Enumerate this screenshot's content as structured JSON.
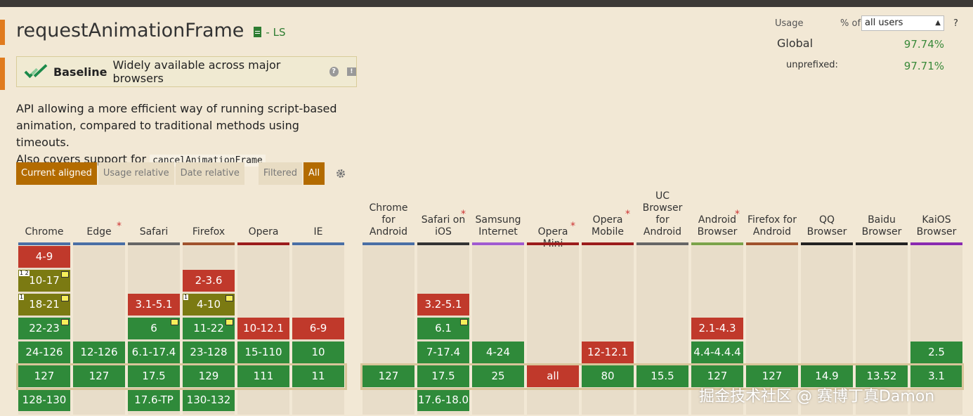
{
  "title": "requestAnimationFrame",
  "spec_label": "- LS",
  "baseline": {
    "label": "Baseline",
    "description": "Widely available across major browsers"
  },
  "description_lines": [
    "API allowing a more efficient way of running script-based",
    "animation, compared to traditional methods using timeouts.",
    "Also covers support for"
  ],
  "description_code": "cancelAnimationFrame",
  "view_buttons": [
    "Current aligned",
    "Usage relative",
    "Date relative"
  ],
  "filter_buttons": [
    "Filtered",
    "All"
  ],
  "usage": {
    "label": "Usage",
    "pct_of": "% of",
    "selected": "all users",
    "help": "?",
    "global_label": "Global",
    "global_value": "97.74%",
    "unprefixed_label": "unprefixed:",
    "unprefixed_value": "97.71%"
  },
  "colors": {
    "supported": "#2f8a3a",
    "unsupported": "#c0392b",
    "partial": "#7b7a12",
    "accent": "#b36b00"
  },
  "browsers": [
    {
      "name": "Chrome",
      "line": "#4a6fa5",
      "cells": [
        {
          "v": "4-9",
          "s": "r",
          "row": 0
        },
        {
          "v": "10-17",
          "s": "p",
          "row": 1,
          "note": "1 2",
          "flag": true
        },
        {
          "v": "18-21",
          "s": "p",
          "row": 2,
          "note": "1",
          "flag": true
        },
        {
          "v": "22-23",
          "s": "g",
          "row": 3,
          "flag": true
        },
        {
          "v": "24-126",
          "s": "g",
          "row": 4
        },
        {
          "v": "127",
          "s": "g",
          "row": 5
        },
        {
          "v": "128-130",
          "s": "g",
          "row": 6
        }
      ]
    },
    {
      "name": "Edge",
      "star": true,
      "line": "#4a6fa5",
      "cells": [
        {
          "v": "12-126",
          "s": "g",
          "row": 4
        },
        {
          "v": "127",
          "s": "g",
          "row": 5
        }
      ]
    },
    {
      "name": "Safari",
      "line": "#666666",
      "cells": [
        {
          "v": "3.1-5.1",
          "s": "r",
          "row": 2
        },
        {
          "v": "6",
          "s": "g",
          "row": 3,
          "flag": true
        },
        {
          "v": "6.1-17.4",
          "s": "g",
          "row": 4
        },
        {
          "v": "17.5",
          "s": "g",
          "row": 5
        },
        {
          "v": "17.6-TP",
          "s": "g",
          "row": 6
        }
      ]
    },
    {
      "name": "Firefox",
      "line": "#a0522d",
      "cells": [
        {
          "v": "2-3.6",
          "s": "r",
          "row": 1
        },
        {
          "v": "4-10",
          "s": "p",
          "row": 2,
          "note": "1",
          "flag": true
        },
        {
          "v": "11-22",
          "s": "g",
          "row": 3,
          "flag": true
        },
        {
          "v": "23-128",
          "s": "g",
          "row": 4
        },
        {
          "v": "129",
          "s": "g",
          "row": 5
        },
        {
          "v": "130-132",
          "s": "g",
          "row": 6
        }
      ]
    },
    {
      "name": "Opera",
      "line": "#9b1c1c",
      "cells": [
        {
          "v": "10-12.1",
          "s": "r",
          "row": 3
        },
        {
          "v": "15-110",
          "s": "g",
          "row": 4
        },
        {
          "v": "111",
          "s": "g",
          "row": 5
        }
      ]
    },
    {
      "name": "IE",
      "line": "#4a6fa5",
      "cells": [
        {
          "v": "6-9",
          "s": "r",
          "row": 3
        },
        {
          "v": "10",
          "s": "g",
          "row": 4
        },
        {
          "v": "11",
          "s": "g",
          "row": 5
        }
      ]
    },
    {
      "name": "Chrome for Android",
      "line": "#4a6fa5",
      "cells": [
        {
          "v": "127",
          "s": "g",
          "row": 5
        }
      ]
    },
    {
      "name": "Safari on iOS",
      "star": true,
      "line": "#333333",
      "cells": [
        {
          "v": "3.2-5.1",
          "s": "r",
          "row": 2
        },
        {
          "v": "6.1",
          "s": "g",
          "row": 3,
          "flag": true
        },
        {
          "v": "7-17.4",
          "s": "g",
          "row": 4
        },
        {
          "v": "17.5",
          "s": "g",
          "row": 5
        },
        {
          "v": "17.6-18.0",
          "s": "g",
          "row": 6
        }
      ]
    },
    {
      "name": "Samsung Internet",
      "line": "#a05ad0",
      "cells": [
        {
          "v": "4-24",
          "s": "g",
          "row": 4
        },
        {
          "v": "25",
          "s": "g",
          "row": 5
        }
      ]
    },
    {
      "name": "Opera Mini",
      "star": true,
      "line": "#9b1c1c",
      "cells": [
        {
          "v": "all",
          "s": "r",
          "row": 5
        }
      ]
    },
    {
      "name": "Opera Mobile",
      "star": true,
      "line": "#9b1c1c",
      "cells": [
        {
          "v": "12-12.1",
          "s": "r",
          "row": 4
        },
        {
          "v": "80",
          "s": "g",
          "row": 5
        }
      ]
    },
    {
      "name": "UC Browser for Android",
      "line": "#666666",
      "cells": [
        {
          "v": "15.5",
          "s": "g",
          "row": 5
        }
      ]
    },
    {
      "name": "Android Browser",
      "star": true,
      "line": "#7ba34a",
      "cells": [
        {
          "v": "2.1-4.3",
          "s": "r",
          "row": 3
        },
        {
          "v": "4.4-4.4.4",
          "s": "g",
          "row": 4
        },
        {
          "v": "127",
          "s": "g",
          "row": 5
        }
      ]
    },
    {
      "name": "Firefox for Android",
      "line": "#a0522d",
      "cells": [
        {
          "v": "127",
          "s": "g",
          "row": 5
        }
      ]
    },
    {
      "name": "QQ Browser",
      "line": "#222222",
      "cells": [
        {
          "v": "14.9",
          "s": "g",
          "row": 5
        }
      ]
    },
    {
      "name": "Baidu Browser",
      "line": "#222222",
      "cells": [
        {
          "v": "13.52",
          "s": "g",
          "row": 5
        }
      ]
    },
    {
      "name": "KaiOS Browser",
      "line": "#8a2ab0",
      "cells": [
        {
          "v": "2.5",
          "s": "g",
          "row": 4
        },
        {
          "v": "3.1",
          "s": "g",
          "row": 5
        }
      ]
    }
  ],
  "watermark": "掘金技术社区 @ 赛博丁真Damon"
}
